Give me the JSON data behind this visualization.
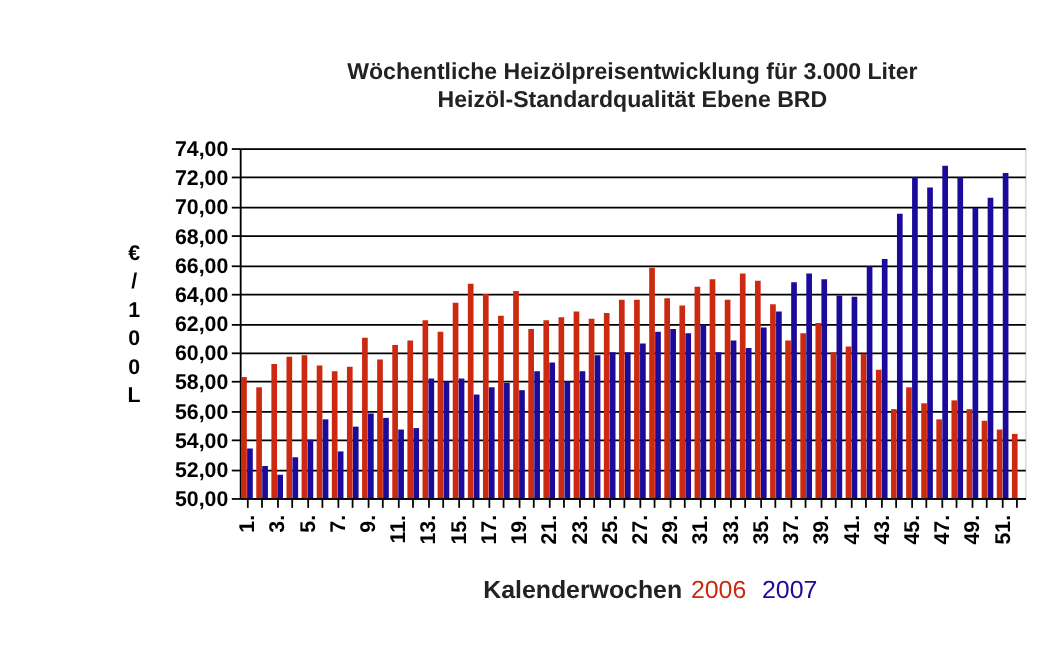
{
  "chart_data": {
    "type": "bar",
    "title": "Wöchentliche Heizölpreisentwicklung für 3.000 Liter",
    "subtitle": "Heizöl-Standardqualität Ebene BRD",
    "xlabel": "Kalenderwochen",
    "ylabel": "€/100L",
    "categories": [
      "1.",
      null,
      "3.",
      null,
      "5.",
      null,
      "7.",
      null,
      "9.",
      null,
      "11.",
      null,
      "13.",
      null,
      "15.",
      null,
      "17.",
      null,
      "19.",
      null,
      "21.",
      null,
      "23.",
      null,
      "25.",
      null,
      "27.",
      null,
      "29.",
      null,
      "31.",
      null,
      "33.",
      null,
      "35.",
      null,
      "37.",
      null,
      "39.",
      null,
      "41.",
      null,
      "43.",
      null,
      "45.",
      null,
      "47.",
      null,
      "49.",
      null,
      "51.",
      null
    ],
    "series": [
      {
        "name": "2006",
        "color": "#cc2a10",
        "values": [
          58.3,
          57.6,
          59.2,
          59.7,
          59.8,
          59.1,
          58.7,
          59.0,
          61.0,
          59.5,
          60.5,
          60.8,
          62.2,
          61.4,
          63.4,
          64.7,
          64.0,
          62.5,
          64.2,
          61.6,
          62.2,
          62.4,
          62.8,
          62.3,
          62.7,
          63.6,
          63.6,
          65.8,
          63.7,
          63.2,
          64.5,
          65.0,
          63.6,
          65.4,
          64.9,
          63.3,
          60.8,
          61.3,
          62.0,
          60.0,
          60.4,
          59.9,
          58.8,
          56.1,
          57.6,
          56.5,
          55.4,
          56.7,
          56.1,
          55.3,
          54.7,
          54.4
        ]
      },
      {
        "name": "2007",
        "color": "#1c0a9a",
        "values": [
          53.4,
          52.2,
          51.6,
          52.8,
          54.0,
          55.4,
          53.2,
          54.9,
          55.8,
          55.5,
          54.7,
          54.8,
          58.2,
          58.0,
          58.2,
          57.1,
          57.6,
          57.9,
          57.4,
          58.7,
          59.3,
          58.0,
          58.7,
          59.8,
          60.0,
          60.0,
          60.6,
          61.4,
          61.6,
          61.3,
          61.9,
          60.0,
          60.8,
          60.3,
          61.7,
          62.8,
          64.8,
          65.4,
          65.0,
          63.9,
          63.8,
          65.9,
          66.4,
          69.5,
          72.0,
          71.3,
          72.8,
          72.0,
          69.9,
          70.6,
          72.3,
          null
        ]
      }
    ],
    "ylim": [
      50,
      74
    ],
    "yticks": [
      {
        "value": 50,
        "label": "50,00"
      },
      {
        "value": 52,
        "label": "52,00"
      },
      {
        "value": 54,
        "label": "54,00"
      },
      {
        "value": 56,
        "label": "56,00"
      },
      {
        "value": 58,
        "label": "58,00"
      },
      {
        "value": 60,
        "label": "60,00"
      },
      {
        "value": 62,
        "label": "62,00"
      },
      {
        "value": 64,
        "label": "64,00"
      },
      {
        "value": 66,
        "label": "66,00"
      },
      {
        "value": 68,
        "label": "68,00"
      },
      {
        "value": 70,
        "label": "70,00"
      },
      {
        "value": 72,
        "label": "72,00"
      },
      {
        "value": 74,
        "label": "74,00"
      }
    ],
    "grid": "y",
    "legend": "bottom"
  }
}
